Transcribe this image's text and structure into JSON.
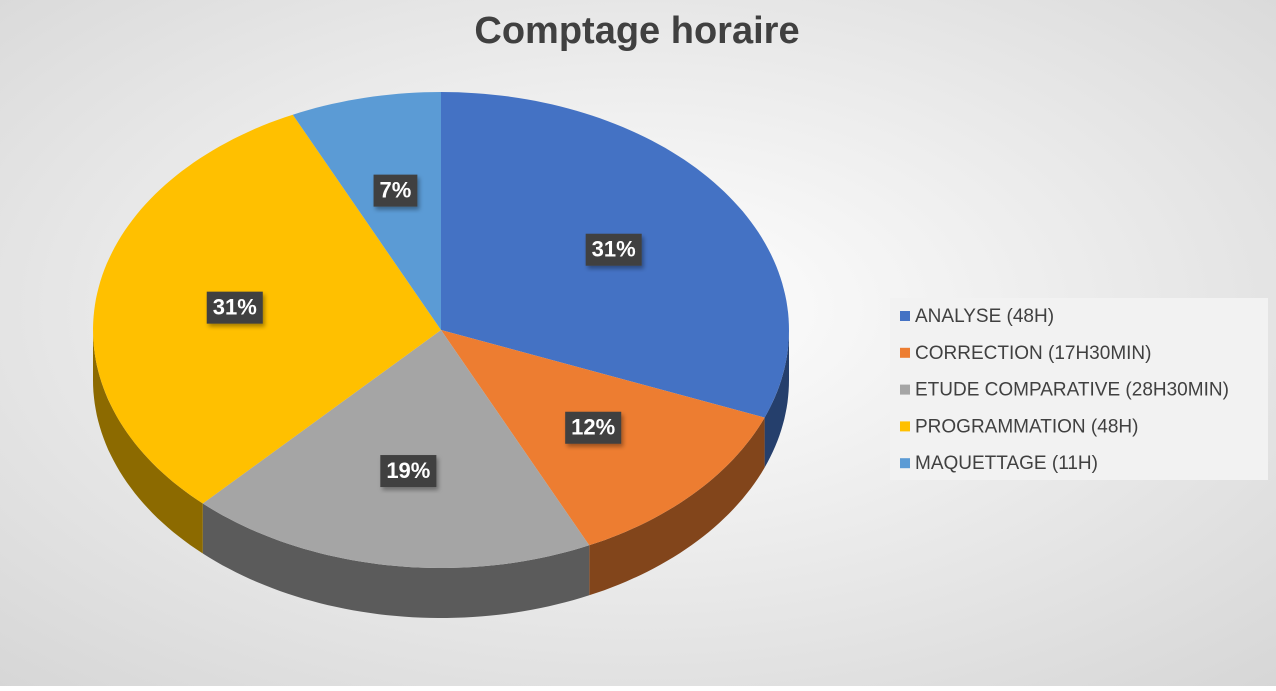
{
  "chart_data": {
    "type": "pie",
    "title": "Comptage horaire",
    "categories": [
      "ANALYSE (48H)",
      "CORRECTION (17H30MIN)",
      "ETUDE COMPARATIVE (28H30MIN)",
      "PROGRAMMATION (48H)",
      "MAQUETTAGE (11H)"
    ],
    "values": [
      31,
      12,
      19,
      31,
      7
    ],
    "value_labels": [
      "31%",
      "12%",
      "19%",
      "31%",
      "7%"
    ],
    "colors": [
      "#4472c4",
      "#ed7d31",
      "#a5a5a5",
      "#ffc000",
      "#5b9bd5"
    ],
    "legend": "right"
  }
}
